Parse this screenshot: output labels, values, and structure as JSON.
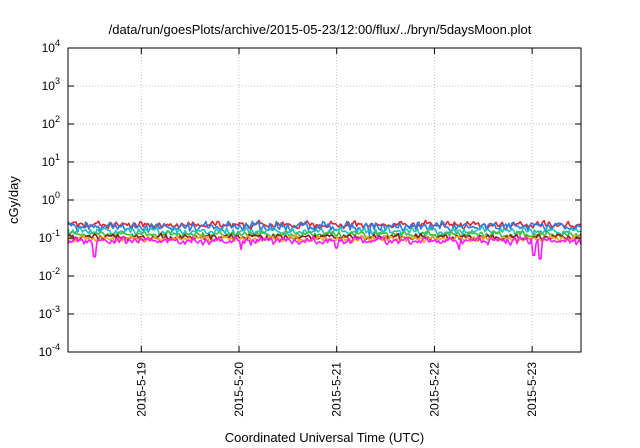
{
  "chart_data": {
    "type": "line",
    "title": "/data/run/goesPlots/archive/2015-05-23/12:00/flux/../bryn/5daysMoon.plot",
    "xlabel": "Coordinated Universal Time (UTC)",
    "ylabel": "cGy/day",
    "yscale": "log",
    "ylim": [
      0.0001,
      10000
    ],
    "xlim": [
      "2015-05-18 06:00",
      "2015-05-23 12:00"
    ],
    "grid": true,
    "legend": "none",
    "x_ticks": [
      {
        "x": "2015-05-19 00:00",
        "label": "2015-5-19"
      },
      {
        "x": "2015-05-20 00:00",
        "label": "2015-5-20"
      },
      {
        "x": "2015-05-21 00:00",
        "label": "2015-5-21"
      },
      {
        "x": "2015-05-22 00:00",
        "label": "2015-5-22"
      },
      {
        "x": "2015-05-23 00:00",
        "label": "2015-5-23"
      }
    ],
    "y_ticks": [
      {
        "value": 0.0001,
        "base": "10",
        "exp": "-4"
      },
      {
        "value": 0.001,
        "base": "10",
        "exp": "-3"
      },
      {
        "value": 0.01,
        "base": "10",
        "exp": "-2"
      },
      {
        "value": 0.1,
        "base": "10",
        "exp": "-1"
      },
      {
        "value": 1,
        "base": "10",
        "exp": "0"
      },
      {
        "value": 10,
        "base": "10",
        "exp": "1"
      },
      {
        "value": 100,
        "base": "10",
        "exp": "2"
      },
      {
        "value": 1000,
        "base": "10",
        "exp": "3"
      },
      {
        "value": 10000,
        "base": "10",
        "exp": "4"
      }
    ],
    "series": [
      {
        "color": "#e8202a",
        "level": 0.22,
        "jitter": 0.12,
        "dips": []
      },
      {
        "color": "#2a7ae2",
        "level": 0.2,
        "jitter": 0.15,
        "dips": [
          [
            "2015-05-21 08:00",
            0.12
          ]
        ]
      },
      {
        "color": "#20c0c0",
        "level": 0.15,
        "jitter": 0.12,
        "dips": []
      },
      {
        "color": "#3cc23c",
        "level": 0.125,
        "jitter": 0.1,
        "dips": []
      },
      {
        "color": "#8b1a1a",
        "level": 0.105,
        "jitter": 0.1,
        "dips": []
      },
      {
        "color": "#f5a623",
        "level": 0.095,
        "jitter": 0.1,
        "dips": []
      },
      {
        "color": "#ff1aff",
        "level": 0.085,
        "jitter": 0.12,
        "dips": [
          [
            "2015-05-18 12:30",
            0.032
          ],
          [
            "2015-05-20 00:30",
            0.05
          ],
          [
            "2015-05-21 00:00",
            0.055
          ],
          [
            "2015-05-22 06:00",
            0.05
          ],
          [
            "2015-05-23 00:30",
            0.035
          ],
          [
            "2015-05-23 02:00",
            0.028
          ]
        ]
      }
    ]
  }
}
